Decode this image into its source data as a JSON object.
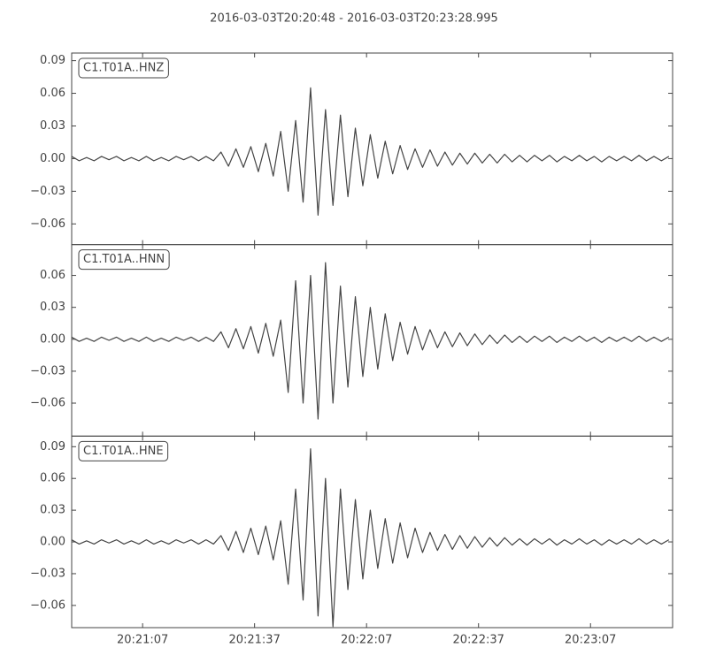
{
  "chart_data": {
    "type": "line",
    "title": "2016-03-03T20:20:48  -  2016-03-03T20:23:28.995",
    "x": [
      "20:20:48",
      "20:20:50",
      "20:20:52",
      "20:20:54",
      "20:20:56",
      "20:20:58",
      "20:21:00",
      "20:21:02",
      "20:21:04",
      "20:21:06",
      "20:21:08",
      "20:21:10",
      "20:21:12",
      "20:21:14",
      "20:21:16",
      "20:21:18",
      "20:21:20",
      "20:21:22",
      "20:21:24",
      "20:21:26",
      "20:21:28",
      "20:21:30",
      "20:21:32",
      "20:21:34",
      "20:21:36",
      "20:21:38",
      "20:21:40",
      "20:21:42",
      "20:21:44",
      "20:21:46",
      "20:21:48",
      "20:21:50",
      "20:21:52",
      "20:21:54",
      "20:21:56",
      "20:21:58",
      "20:22:00",
      "20:22:02",
      "20:22:04",
      "20:22:06",
      "20:22:08",
      "20:22:10",
      "20:22:12",
      "20:22:14",
      "20:22:16",
      "20:22:18",
      "20:22:20",
      "20:22:22",
      "20:22:24",
      "20:22:26",
      "20:22:28",
      "20:22:30",
      "20:22:32",
      "20:22:34",
      "20:22:36",
      "20:22:38",
      "20:22:40",
      "20:22:42",
      "20:22:44",
      "20:22:46",
      "20:22:48",
      "20:22:50",
      "20:22:52",
      "20:22:54",
      "20:22:56",
      "20:22:58",
      "20:23:00",
      "20:23:02",
      "20:23:04",
      "20:23:06",
      "20:23:08",
      "20:23:10",
      "20:23:12",
      "20:23:14",
      "20:23:16",
      "20:23:18",
      "20:23:20",
      "20:23:22",
      "20:23:24",
      "20:23:26",
      "20:23:28"
    ],
    "xlim": [
      "20:20:48",
      "20:23:28.995"
    ],
    "xticks": [
      "20:21:07",
      "20:21:37",
      "20:22:07",
      "20:22:37",
      "20:23:07"
    ],
    "series": [
      {
        "name": "C1.T01A..HNZ",
        "color": "#444444",
        "ylim": [
          -0.079,
          0.097
        ],
        "yticks": [
          {
            "value": -0.06,
            "label": "−0.06"
          },
          {
            "value": -0.03,
            "label": "−0.03"
          },
          {
            "value": 0,
            "label": "0.00"
          },
          0.03,
          0.06,
          0.09
        ],
        "values": [
          0.002,
          -0.002,
          0.001,
          -0.002,
          0.002,
          -0.001,
          0.002,
          -0.002,
          0.001,
          -0.002,
          0.002,
          -0.002,
          0.001,
          -0.002,
          0.002,
          -0.001,
          0.002,
          -0.002,
          0.002,
          -0.002,
          0.006,
          -0.007,
          0.009,
          -0.008,
          0.011,
          -0.012,
          0.014,
          -0.016,
          0.025,
          -0.03,
          0.035,
          -0.04,
          0.065,
          -0.052,
          0.045,
          -0.043,
          0.04,
          -0.035,
          0.028,
          -0.025,
          0.022,
          -0.018,
          0.016,
          -0.014,
          0.012,
          -0.01,
          0.009,
          -0.008,
          0.008,
          -0.007,
          0.006,
          -0.006,
          0.005,
          -0.005,
          0.005,
          -0.004,
          0.004,
          -0.004,
          0.004,
          -0.003,
          0.003,
          -0.003,
          0.003,
          -0.002,
          0.003,
          -0.003,
          0.002,
          -0.002,
          0.003,
          -0.002,
          0.002,
          -0.003,
          0.002,
          -0.002,
          0.002,
          -0.002,
          0.003,
          -0.002,
          0.002,
          -0.002,
          0.002
        ]
      },
      {
        "name": "C1.T01A..HNN",
        "color": "#444444",
        "ylim": [
          -0.091,
          0.089
        ],
        "yticks": [
          {
            "value": -0.06,
            "label": "−0.06"
          },
          {
            "value": -0.03,
            "label": "−0.03"
          },
          {
            "value": 0,
            "label": "0.00"
          },
          0.03,
          0.06
        ],
        "values": [
          0.002,
          -0.002,
          0.001,
          -0.002,
          0.002,
          -0.001,
          0.002,
          -0.002,
          0.001,
          -0.002,
          0.002,
          -0.002,
          0.001,
          -0.002,
          0.002,
          -0.001,
          0.002,
          -0.002,
          0.002,
          -0.002,
          0.007,
          -0.008,
          0.01,
          -0.009,
          0.012,
          -0.013,
          0.015,
          -0.016,
          0.018,
          -0.05,
          0.055,
          -0.06,
          0.06,
          -0.075,
          0.072,
          -0.06,
          0.05,
          -0.045,
          0.04,
          -0.035,
          0.03,
          -0.028,
          0.024,
          -0.02,
          0.016,
          -0.014,
          0.012,
          -0.01,
          0.009,
          -0.008,
          0.007,
          -0.007,
          0.006,
          -0.006,
          0.005,
          -0.005,
          0.004,
          -0.004,
          0.004,
          -0.003,
          0.003,
          -0.003,
          0.003,
          -0.002,
          0.003,
          -0.003,
          0.002,
          -0.002,
          0.003,
          -0.002,
          0.002,
          -0.003,
          0.002,
          -0.002,
          0.002,
          -0.002,
          0.003,
          -0.002,
          0.002,
          -0.002,
          0.002
        ]
      },
      {
        "name": "C1.T01A..HNE",
        "color": "#444444",
        "ylim": [
          -0.081,
          0.1
        ],
        "yticks": [
          {
            "value": -0.06,
            "label": "−0.06"
          },
          {
            "value": -0.03,
            "label": "−0.03"
          },
          {
            "value": 0,
            "label": "0.00"
          },
          0.03,
          0.06,
          0.09
        ],
        "values": [
          0.002,
          -0.002,
          0.001,
          -0.002,
          0.002,
          -0.001,
          0.002,
          -0.002,
          0.001,
          -0.002,
          0.002,
          -0.002,
          0.001,
          -0.002,
          0.002,
          -0.001,
          0.002,
          -0.002,
          0.002,
          -0.002,
          0.006,
          -0.008,
          0.01,
          -0.01,
          0.013,
          -0.012,
          0.015,
          -0.017,
          0.02,
          -0.04,
          0.05,
          -0.055,
          0.088,
          -0.07,
          0.06,
          -0.08,
          0.05,
          -0.045,
          0.04,
          -0.035,
          0.03,
          -0.025,
          0.022,
          -0.02,
          0.018,
          -0.015,
          0.013,
          -0.01,
          0.009,
          -0.008,
          0.007,
          -0.007,
          0.006,
          -0.006,
          0.005,
          -0.005,
          0.004,
          -0.004,
          0.004,
          -0.003,
          0.003,
          -0.003,
          0.003,
          -0.002,
          0.003,
          -0.003,
          0.002,
          -0.002,
          0.003,
          -0.002,
          0.002,
          -0.003,
          0.002,
          -0.002,
          0.002,
          -0.002,
          0.003,
          -0.002,
          0.002,
          -0.002,
          0.002
        ]
      }
    ]
  }
}
